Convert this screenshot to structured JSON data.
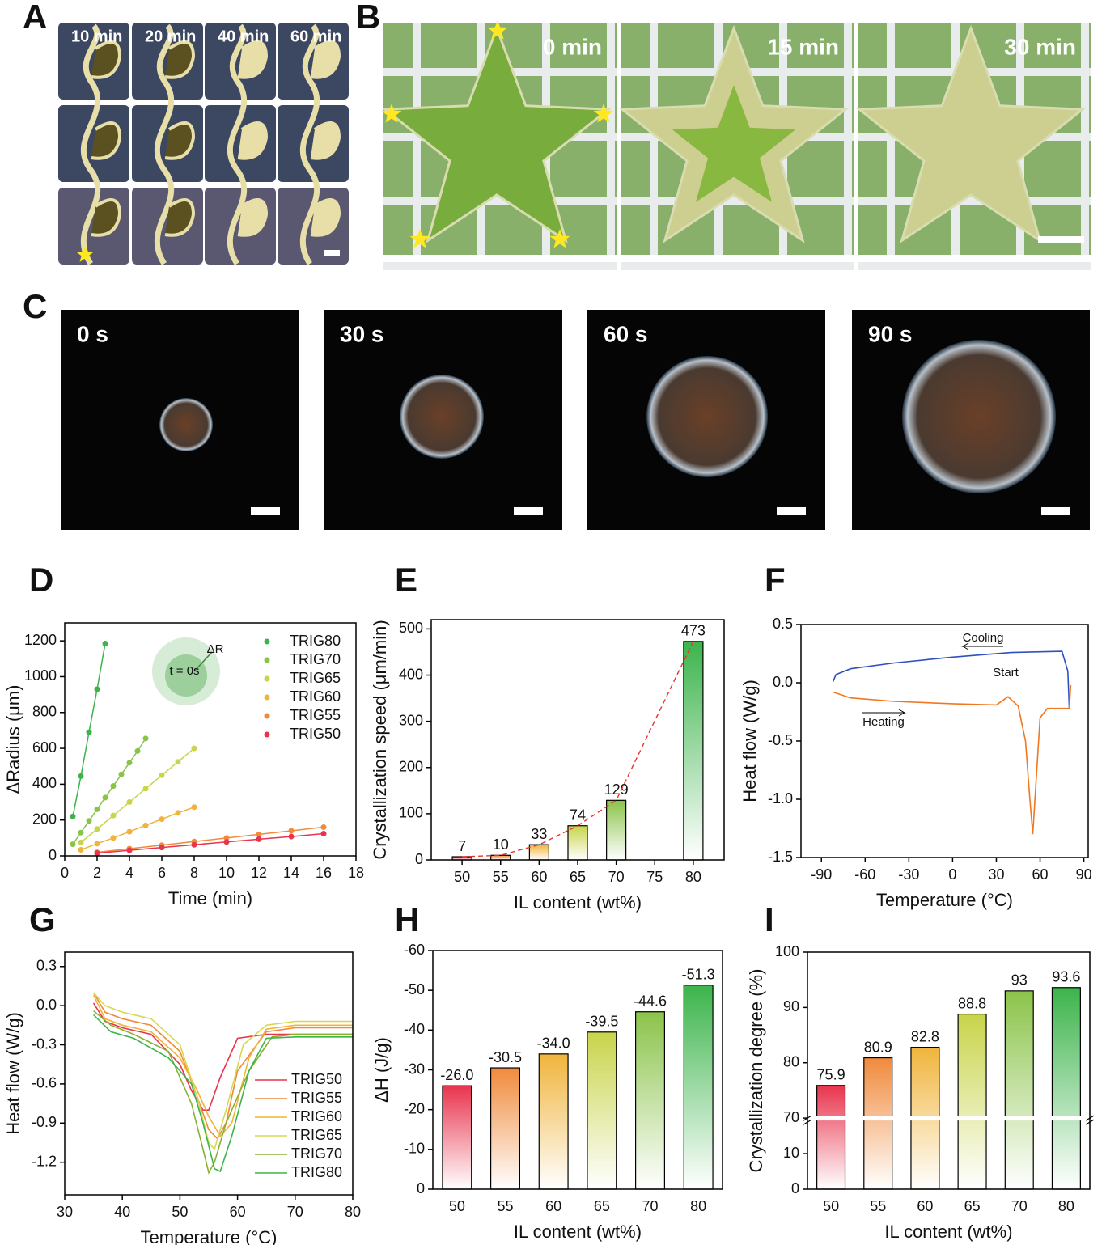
{
  "photo_panels": [
    {
      "label": "A",
      "captions": [
        "10 min",
        "20 min",
        "40 min",
        "60 min"
      ]
    },
    {
      "label": "B",
      "captions": [
        "0 min",
        "15 min",
        "30 min"
      ]
    },
    {
      "label": "C",
      "captions": [
        "0 s",
        "30 s",
        "60 s",
        "90 s"
      ]
    }
  ],
  "chart_data": [
    {
      "type": "scatter",
      "label": "D",
      "xlabel": "Time (min)",
      "ylabel": "ΔRadius (μm)",
      "xlim": [
        0,
        18
      ],
      "xticks": [
        0,
        2,
        4,
        6,
        8,
        10,
        12,
        14,
        16,
        18
      ],
      "ylim": [
        0,
        1300
      ],
      "yticks": [
        0,
        200,
        400,
        600,
        800,
        1000,
        1200
      ],
      "annotations": [
        "ΔR",
        "t = 0s"
      ],
      "series": [
        {
          "name": "TRIG80",
          "color": "#3cb44b",
          "x": [
            0.5,
            1,
            1.5,
            2,
            2.5
          ],
          "values": [
            220,
            445,
            690,
            930,
            1185
          ]
        },
        {
          "name": "TRIG70",
          "color": "#8bc34a",
          "x": [
            0.5,
            1,
            1.5,
            2,
            2.5,
            3,
            3.5,
            4,
            4.5,
            5
          ],
          "values": [
            65,
            130,
            195,
            260,
            325,
            390,
            455,
            520,
            585,
            655
          ]
        },
        {
          "name": "TRIG65",
          "color": "#c8d44a",
          "x": [
            1,
            2,
            3,
            4,
            5,
            6,
            7,
            8
          ],
          "values": [
            75,
            150,
            225,
            300,
            375,
            450,
            525,
            600
          ]
        },
        {
          "name": "TRIG60",
          "color": "#f0b43c",
          "x": [
            1,
            2,
            3,
            4,
            5,
            6,
            7,
            8
          ],
          "values": [
            34,
            68,
            100,
            135,
            170,
            205,
            240,
            272
          ]
        },
        {
          "name": "TRIG55",
          "color": "#f08a3c",
          "x": [
            2,
            4,
            6,
            8,
            10,
            12,
            14,
            16
          ],
          "values": [
            20,
            40,
            60,
            80,
            100,
            120,
            140,
            160
          ]
        },
        {
          "name": "TRIG50",
          "color": "#e8344e",
          "x": [
            2,
            4,
            6,
            8,
            10,
            12,
            14,
            16
          ],
          "values": [
            15,
            31,
            47,
            62,
            78,
            93,
            108,
            124
          ]
        }
      ]
    },
    {
      "type": "bar",
      "label": "E",
      "xlabel": "IL content (wt%)",
      "ylabel": "Crystallization speed (μm/min)",
      "x": [
        50,
        55,
        60,
        65,
        70,
        80
      ],
      "values": [
        7,
        10,
        33,
        74,
        129,
        473
      ],
      "colors": [
        "#e8344e",
        "#f08a3c",
        "#f0b43c",
        "#c8d44a",
        "#8bc34a",
        "#3cb44b"
      ],
      "fit_color": "#e8342e",
      "xlim": [
        46,
        84
      ],
      "xticks": [
        50,
        55,
        60,
        65,
        70,
        75,
        80
      ],
      "ylim": [
        0,
        520
      ],
      "yticks": [
        0,
        100,
        200,
        300,
        400,
        500
      ]
    },
    {
      "type": "line",
      "label": "F",
      "xlabel": "Temperature (°C)",
      "ylabel": "Heat flow (W/g)",
      "annotations": [
        "Cooling",
        "Heating",
        "Start"
      ],
      "xlim": [
        -104,
        93
      ],
      "xticks": [
        -90,
        -60,
        -30,
        0,
        30,
        60,
        90
      ],
      "ylim": [
        -1.5,
        0.5
      ],
      "yticks": [
        0.5,
        {
          "value": 0,
          "label": "0.0"
        },
        -0.5,
        {
          "value": -1,
          "label": "-1.0"
        },
        -1.5
      ],
      "series": [
        {
          "color": "#3050c0",
          "x": [
            80,
            79,
            75,
            40,
            0,
            -40,
            -70,
            -80,
            -82
          ],
          "values": [
            -0.22,
            0.1,
            0.27,
            0.26,
            0.22,
            0.17,
            0.12,
            0.07,
            0.01
          ]
        },
        {
          "color": "#f07820",
          "x": [
            -82,
            -70,
            -40,
            0,
            30,
            38,
            45,
            50,
            53,
            55,
            57,
            60,
            65,
            80,
            81
          ],
          "values": [
            -0.08,
            -0.13,
            -0.16,
            -0.18,
            -0.19,
            -0.12,
            -0.2,
            -0.5,
            -1.0,
            -1.3,
            -0.9,
            -0.3,
            -0.22,
            -0.22,
            -0.02
          ]
        }
      ]
    },
    {
      "type": "line",
      "label": "G",
      "xlabel": "Temperature (°C)",
      "ylabel": "Heat flow (W/g)",
      "xlim": [
        30,
        80
      ],
      "xticks": [
        30,
        40,
        50,
        60,
        70,
        80
      ],
      "ylim": [
        -1.45,
        0.41
      ],
      "yticks": [
        0.3,
        {
          "value": 0,
          "label": "0.0"
        },
        -0.3,
        -0.6,
        -0.9,
        -1.2
      ],
      "series": [
        {
          "name": "TRIG50",
          "color": "#e8344e",
          "x": [
            35,
            37,
            40,
            45,
            50,
            52,
            54,
            55,
            57,
            60,
            65,
            70,
            80
          ],
          "values": [
            0.02,
            -0.12,
            -0.17,
            -0.22,
            -0.45,
            -0.65,
            -0.8,
            -0.8,
            -0.55,
            -0.25,
            -0.22,
            -0.22,
            -0.22
          ]
        },
        {
          "name": "TRIG55",
          "color": "#f08a3c",
          "x": [
            35,
            37,
            40,
            45,
            50,
            53,
            55,
            56.5,
            58,
            60,
            65,
            70,
            80
          ],
          "values": [
            0.1,
            -0.05,
            -0.1,
            -0.15,
            -0.35,
            -0.7,
            -0.95,
            -1.02,
            -0.9,
            -0.5,
            -0.2,
            -0.17,
            -0.17
          ]
        },
        {
          "name": "TRIG60",
          "color": "#f0b43c",
          "x": [
            35,
            37,
            40,
            45,
            50,
            53,
            55,
            57,
            59,
            62,
            65,
            70,
            80
          ],
          "values": [
            0.08,
            -0.1,
            -0.15,
            -0.2,
            -0.4,
            -0.65,
            -0.85,
            -1.0,
            -0.9,
            -0.4,
            -0.18,
            -0.15,
            -0.15
          ]
        },
        {
          "name": "TRIG65",
          "color": "#d8d850",
          "x": [
            35,
            37,
            40,
            45,
            50,
            53,
            55,
            56,
            58,
            61,
            65,
            70,
            80
          ],
          "values": [
            0.1,
            0.0,
            -0.05,
            -0.1,
            -0.3,
            -0.7,
            -1.05,
            -1.1,
            -0.8,
            -0.3,
            -0.15,
            -0.12,
            -0.12
          ]
        },
        {
          "name": "TRIG70",
          "color": "#8bb030",
          "x": [
            35,
            38,
            42,
            48,
            52,
            54,
            55,
            56,
            58,
            62,
            66,
            70,
            80
          ],
          "values": [
            -0.04,
            -0.15,
            -0.22,
            -0.35,
            -0.75,
            -1.1,
            -1.28,
            -1.2,
            -0.9,
            -0.5,
            -0.24,
            -0.22,
            -0.22
          ]
        },
        {
          "name": "TRIG80",
          "color": "#3cb44b",
          "x": [
            35,
            38,
            42,
            48,
            52,
            54,
            56,
            57,
            59,
            62,
            65,
            70,
            80
          ],
          "values": [
            -0.07,
            -0.2,
            -0.25,
            -0.4,
            -0.6,
            -0.9,
            -1.25,
            -1.27,
            -1.0,
            -0.5,
            -0.25,
            -0.24,
            -0.24
          ]
        }
      ]
    },
    {
      "type": "bar",
      "label": "H",
      "xlabel": "IL content (wt%)",
      "ylabel": "ΔH (J/g)",
      "categories": [
        "50",
        "55",
        "60",
        "65",
        "70",
        "80"
      ],
      "values": [
        -26.0,
        -30.5,
        -34.0,
        -39.5,
        -44.6,
        -51.3
      ],
      "value_labels": [
        "-26.0",
        "-30.5",
        "-34.0",
        "-39.5",
        "-44.6",
        "-51.3"
      ],
      "colors": [
        "#e8344e",
        "#f08a3c",
        "#f0b43c",
        "#c8d44a",
        "#8bc34a",
        "#3cb44b"
      ],
      "ylim": [
        0,
        -60
      ],
      "yticks": [
        0,
        -10,
        -20,
        -30,
        -40,
        -50,
        -60
      ]
    },
    {
      "type": "bar",
      "label": "I",
      "xlabel": "IL content (wt%)",
      "ylabel": "Crystallization degree (%)",
      "categories": [
        "50",
        "55",
        "60",
        "65",
        "70",
        "80"
      ],
      "values": [
        75.9,
        80.9,
        82.8,
        88.8,
        93,
        93.6
      ],
      "colors": [
        "#e8344e",
        "#f08a3c",
        "#f0b43c",
        "#c8d44a",
        "#8bc34a",
        "#3cb44b"
      ],
      "ylim": [
        0,
        100
      ],
      "ybreak": [
        20,
        70
      ],
      "yticks": [
        0,
        10,
        70,
        80,
        90,
        100
      ]
    }
  ]
}
